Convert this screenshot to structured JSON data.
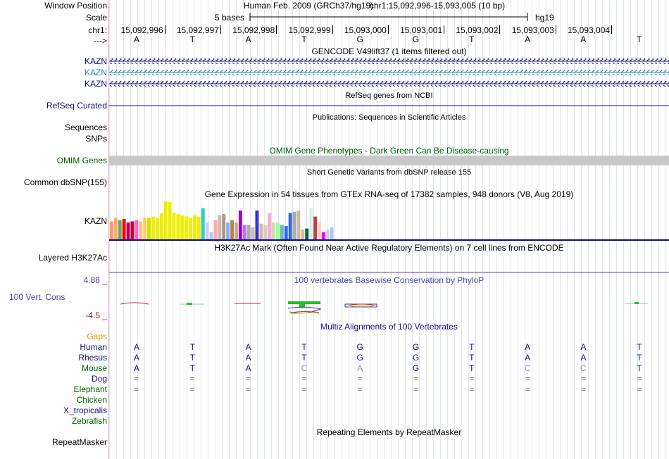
{
  "header": {
    "window_position_label": "Window Position",
    "scale_label": "Scale",
    "chr_label": "chr1:",
    "strand_label": "--->",
    "assembly": "Human Feb. 2009 (GRCh37/hg19)",
    "region": "chr1:15,092,996-15,093,005 (10 bp)",
    "scale_text": "5 bases",
    "scale_db": "hg19",
    "positions": [
      "15,092,996",
      "15,092,997",
      "15,092,998",
      "15,092,999",
      "15,093,000",
      "15,093,001",
      "15,093,002",
      "15,093,003",
      "15,093,004"
    ],
    "bases": [
      "A",
      "T",
      "A",
      "T",
      "G",
      "G",
      "T",
      "A",
      "A",
      "T"
    ]
  },
  "tracks": {
    "gencode": {
      "title": "GENCODE V49lift37 (1 items filtered out)",
      "items": [
        "KAZN",
        "KAZN",
        "KAZN"
      ]
    },
    "refseq": {
      "title": "RefSeq genes from NCBI",
      "label": "RefSeq Curated"
    },
    "publications": {
      "title": "Publications: Sequences in Scientific Articles",
      "label": "Sequences"
    },
    "snps_label": "SNPs",
    "omim": {
      "title": "OMIM Gene Phenotypes - Dark Green Can Be Disease-causing",
      "label": "OMIM Genes"
    },
    "dbsnp": {
      "title": "Short Genetic Variants from dbSNP release 155",
      "label": "Common dbSNP(155)"
    },
    "gtex": {
      "title": "Gene Expression in 54 tissues from GTEx RNA-seq of 17382 samples, 948 donors (V8, Aug 2019)",
      "label": "KAZN"
    },
    "h3k27ac": {
      "title": "H3K27Ac Mark (Often Found Near Active Regulatory Elements) on 7 cell lines from ENCODE",
      "label": "Layered H3K27Ac"
    },
    "phylop": {
      "title": "100 vertebrates Basewise Conservation by PhyloP",
      "label": "100 Vert. Cons",
      "max": "4.88 _",
      "min": "-4.5 _"
    },
    "multiz": {
      "title": "Multiz Alignments of 100 Vertebrates",
      "gaps_label": "Gaps",
      "species": [
        "Human",
        "Rhesus",
        "Mouse",
        "Dog",
        "Elephant",
        "Chicken",
        "X_tropicalis",
        "Zebrafish"
      ],
      "rows": [
        [
          "A",
          "T",
          "A",
          "T",
          "G",
          "G",
          "T",
          "A",
          "A",
          "T"
        ],
        [
          "A",
          "T",
          "A",
          "T",
          "G",
          "G",
          "T",
          "A",
          "A",
          "T"
        ],
        [
          "A",
          "T",
          "A",
          "C",
          "A",
          "G",
          "T",
          "C",
          "C",
          "T"
        ],
        [
          "=",
          "=",
          "=",
          "=",
          "=",
          "=",
          "=",
          "=",
          "=",
          "="
        ],
        [
          "=",
          "=",
          "=",
          "=",
          "=",
          "=",
          "=",
          "=",
          "=",
          "="
        ],
        [],
        [],
        []
      ]
    },
    "repeatmasker": {
      "title": "Repeating Elements by RepeatMasker",
      "label": "RepeatMasker"
    }
  },
  "colors": {
    "gencode_dark": "#0c0c78",
    "gencode_light": "#1a8bb0",
    "refseq": "#0c0c78",
    "omim_bar": "#c8c8c8",
    "green_label": "#006400",
    "phylop_label": "#4848a8",
    "phylop_min": "#a02020",
    "gaps": "#e0a000",
    "multiz_species_blue": "#10108a"
  },
  "gtex_colors": [
    "#ff9966",
    "#ffaa66",
    "#66aa66",
    "#ff0000",
    "#aa0066",
    "#cc0033",
    "#ff66cc",
    "#ffbb88",
    "#ffcc66",
    "#dddd00",
    "#eeee00",
    "#eeee00",
    "#eeee00",
    "#eeee00",
    "#eeee00",
    "#eeee00",
    "#eeee00",
    "#eeee00",
    "#eeee00",
    "#eeee00",
    "#eeee00",
    "#eeee00",
    "#33cccc",
    "#ccccff",
    "#aaccff",
    "#ffaaaa",
    "#ccbbaa",
    "#aa9988",
    "#88aaff",
    "#aa8855",
    "#ccaa88",
    "#9900cc",
    "#cc66ff",
    "#aaaaaa",
    "#ccbbaa",
    "#3333cc",
    "#ccbbaa",
    "#ddccbb",
    "#ffaacc",
    "#ccddaa",
    "#99ff99",
    "#66bbbb",
    "#3366ff",
    "#3366dd",
    "#aaaaaa",
    "#ccbbaa",
    "#ddbb99",
    "#006633",
    "#ddeeee",
    "#bb4444",
    "#ffcccc",
    "#ee00ee",
    "#ccccee",
    "#aaccee"
  ],
  "gtex_values": [
    15,
    18,
    16,
    17,
    14,
    15,
    16,
    15,
    18,
    18,
    19,
    18,
    22,
    32,
    31,
    22,
    21,
    20,
    19,
    18,
    20,
    19,
    26,
    14,
    6,
    16,
    20,
    21,
    14,
    16,
    14,
    24,
    12,
    12,
    10,
    24,
    13,
    12,
    22,
    14,
    14,
    12,
    11,
    22,
    23,
    24,
    8,
    9,
    26,
    19,
    14,
    6,
    8,
    10
  ]
}
